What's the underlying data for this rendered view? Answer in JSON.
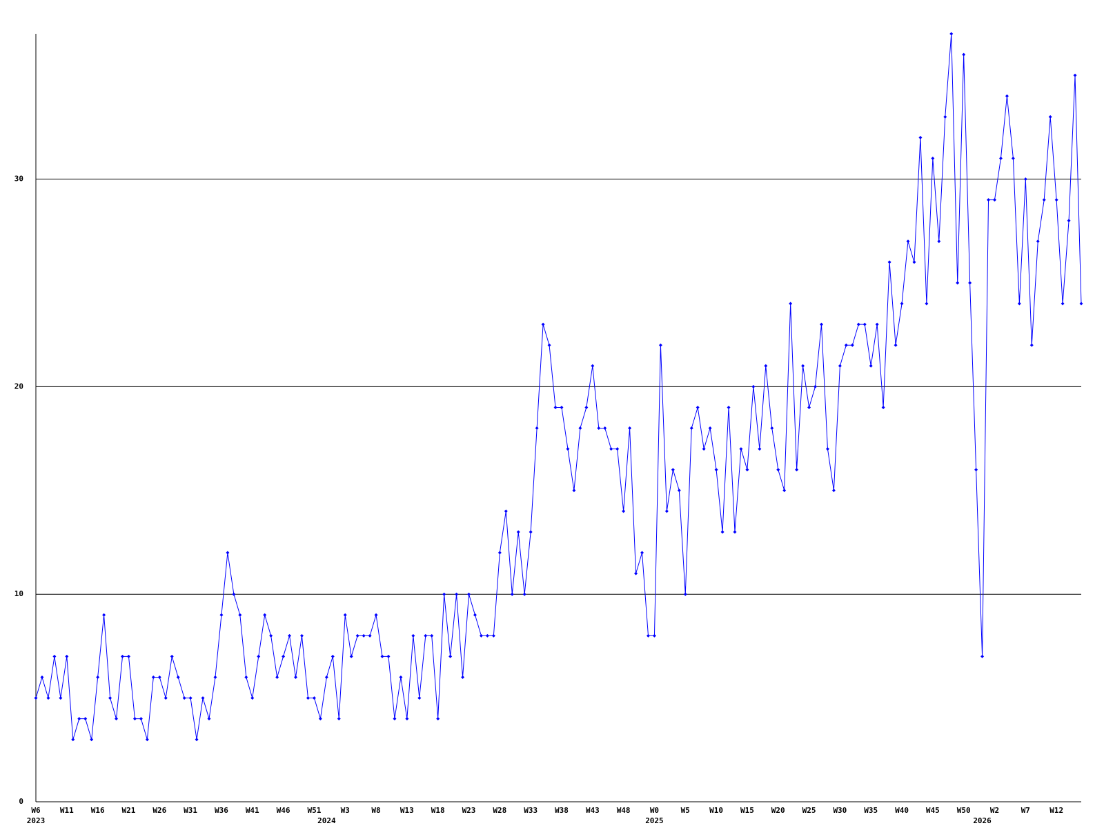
{
  "chart_data": {
    "type": "line",
    "categories": [
      "W6",
      null,
      null,
      null,
      null,
      "W11",
      null,
      null,
      null,
      null,
      "W16",
      null,
      null,
      null,
      null,
      "W21",
      null,
      null,
      null,
      null,
      "W26",
      null,
      null,
      null,
      null,
      "W31",
      null,
      null,
      null,
      null,
      "W36",
      null,
      null,
      null,
      null,
      "W41",
      null,
      null,
      null,
      null,
      "W46",
      null,
      null,
      null,
      null,
      "W51",
      null,
      null,
      null,
      null,
      "W3",
      null,
      null,
      null,
      null,
      "W8",
      null,
      null,
      null,
      null,
      "W13",
      null,
      null,
      null,
      null,
      "W18",
      null,
      null,
      null,
      null,
      "W23",
      null,
      null,
      null,
      null,
      "W28",
      null,
      null,
      null,
      null,
      "W33",
      null,
      null,
      null,
      null,
      "W38",
      null,
      null,
      null,
      null,
      "W43",
      null,
      null,
      null,
      null,
      "W48",
      null,
      null,
      null,
      null,
      "W0",
      null,
      null,
      null,
      null,
      "W5",
      null,
      null,
      null,
      null,
      "W10",
      null,
      null,
      null,
      null,
      "W15",
      null,
      null,
      null,
      null,
      "W20",
      null,
      null,
      null,
      null,
      "W25",
      null,
      null,
      null,
      null,
      "W30",
      null,
      null,
      null,
      null,
      "W35",
      null,
      null,
      null,
      null,
      "W40",
      null,
      null,
      null,
      null,
      "W45",
      null,
      null,
      null,
      null,
      "W50",
      null,
      null,
      null,
      null,
      "W2",
      null,
      null,
      null,
      null,
      "W7",
      null,
      null,
      null,
      null,
      "W12",
      null,
      null,
      null,
      null
    ],
    "years": [
      "2023",
      null,
      null,
      null,
      null,
      null,
      null,
      null,
      null,
      null,
      null,
      null,
      null,
      null,
      null,
      null,
      null,
      null,
      null,
      null,
      null,
      null,
      null,
      null,
      null,
      null,
      null,
      null,
      null,
      null,
      null,
      null,
      null,
      null,
      null,
      null,
      null,
      null,
      null,
      null,
      null,
      null,
      null,
      null,
      null,
      null,
      null,
      "2024",
      null,
      null,
      null,
      null,
      null,
      null,
      null,
      null,
      null,
      null,
      null,
      null,
      null,
      null,
      null,
      null,
      null,
      null,
      null,
      null,
      null,
      null,
      null,
      null,
      null,
      null,
      null,
      null,
      null,
      null,
      null,
      null,
      null,
      null,
      null,
      null,
      null,
      null,
      null,
      null,
      null,
      null,
      null,
      null,
      null,
      null,
      null,
      null,
      null,
      null,
      null,
      null,
      "2025",
      null,
      null,
      null,
      null,
      null,
      null,
      null,
      null,
      null,
      null,
      null,
      null,
      null,
      null,
      null,
      null,
      null,
      null,
      null,
      null,
      null,
      null,
      null,
      null,
      null,
      null,
      null,
      null,
      null,
      null,
      null,
      null,
      null,
      null,
      null,
      null,
      null,
      null,
      null,
      null,
      null,
      null,
      null,
      null,
      null,
      null,
      null,
      null,
      null,
      null,
      null,
      null,
      "2026",
      null,
      null,
      null,
      null,
      null,
      null,
      null,
      null,
      null,
      null,
      null,
      null,
      null,
      null,
      null,
      null
    ],
    "series": [
      {
        "color": "#0000ff",
        "values": [
          5,
          6,
          5,
          7,
          5,
          7,
          3,
          4,
          4,
          3,
          6,
          9,
          5,
          4,
          7,
          7,
          4,
          4,
          3,
          6,
          6,
          5,
          7,
          6,
          5,
          5,
          3,
          5,
          4,
          6,
          9,
          12,
          10,
          9,
          6,
          5,
          7,
          9,
          8,
          6,
          7,
          8,
          6,
          8,
          5,
          5,
          4,
          6,
          7,
          4,
          9,
          7,
          8,
          8,
          8,
          9,
          7,
          7,
          4,
          6,
          4,
          8,
          5,
          8,
          8,
          4,
          10,
          7,
          10,
          6,
          10,
          9,
          8,
          8,
          8,
          12,
          14,
          10,
          13,
          10,
          13,
          18,
          23,
          22,
          19,
          19,
          17,
          15,
          18,
          19,
          21,
          18,
          18,
          17,
          17,
          14,
          18,
          11,
          12,
          8,
          8,
          22,
          14,
          16,
          15,
          10,
          18,
          19,
          17,
          18,
          16,
          13,
          19,
          13,
          17,
          16,
          20,
          17,
          21,
          18,
          16,
          15,
          24,
          16,
          21,
          19,
          20,
          23,
          17,
          15,
          21,
          22,
          22,
          23,
          23,
          21,
          23,
          19,
          26,
          22,
          24,
          27,
          26,
          32,
          24,
          31,
          27,
          33,
          37,
          25,
          36,
          25,
          16,
          7,
          29,
          29,
          31,
          34,
          31,
          24,
          30,
          22,
          27,
          29,
          33,
          29,
          24,
          28,
          35,
          24
        ]
      }
    ],
    "ylim": [
      0,
      37
    ],
    "yticks": [
      0,
      10,
      20,
      30
    ],
    "grid": true
  }
}
